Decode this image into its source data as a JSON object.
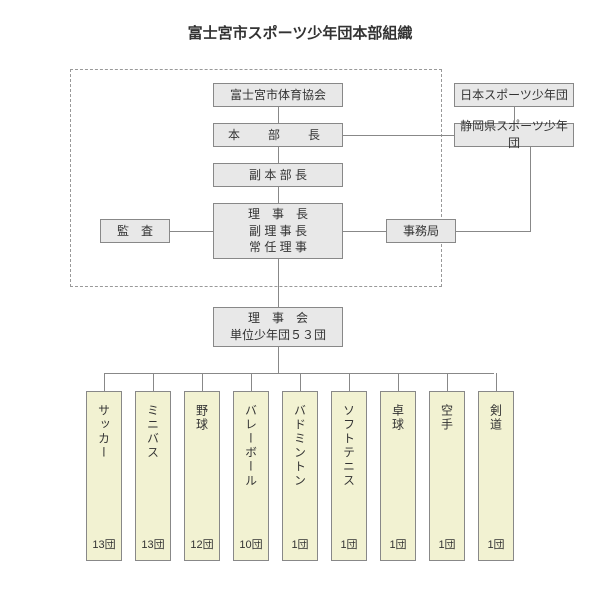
{
  "title": "富士宮市スポーツ少年団本部組織",
  "nodes": {
    "taikyou": "富士宮市体育協会",
    "japan": "日本スポーツ少年団",
    "honbuchou": "本　部　長",
    "shizuoka": "静岡県スポーツ少年団",
    "fukuhonbuchou": "副 本 部 長",
    "kansa": "監　査",
    "rijichou_l1": "理　事　長",
    "rijichou_l2": "副 理 事 長",
    "rijichou_l3": "常 任 理 事",
    "jimukyoku": "事務局",
    "rijikai_l1": "理　事　会",
    "rijikai_l2": "単位少年団５３団"
  },
  "sports": [
    {
      "name": "サッカー",
      "count": "13団"
    },
    {
      "name": "ミニバス",
      "count": "13団"
    },
    {
      "name": "野球",
      "count": "12団"
    },
    {
      "name": "バレーボール",
      "count": "10団"
    },
    {
      "name": "バドミントン",
      "count": "1団"
    },
    {
      "name": "ソフトテニス",
      "count": "1団"
    },
    {
      "name": "卓球",
      "count": "1団"
    },
    {
      "name": "空手",
      "count": "1団"
    },
    {
      "name": "剣道",
      "count": "1団"
    }
  ],
  "colors": {
    "box_bg": "#e8e8e8",
    "sport_bg": "#f2f2d2",
    "border": "#888888",
    "line": "#888888",
    "bg": "#ffffff"
  }
}
